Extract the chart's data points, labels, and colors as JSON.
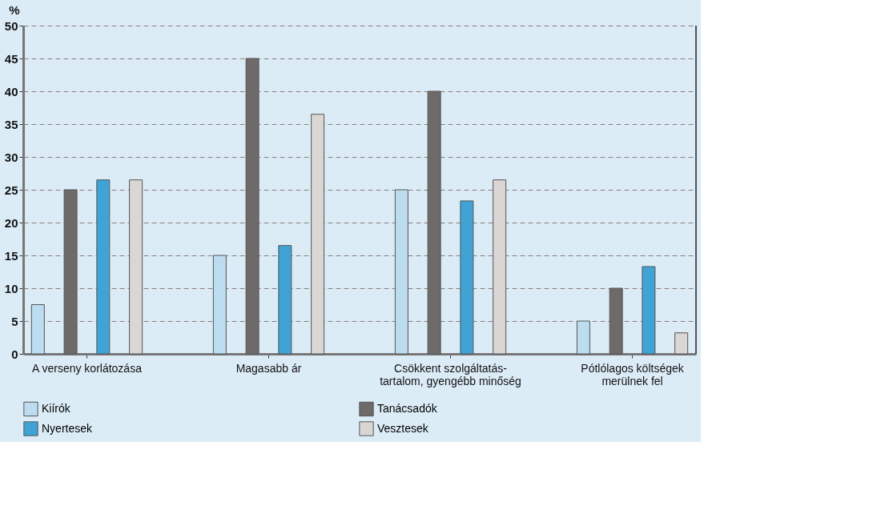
{
  "chart_data": {
    "type": "bar",
    "ylabel": "%",
    "categories": [
      "A verseny korlátozása",
      "Magasabb ár",
      "Csökkent szolgáltatás-\ntartalom, gyengébb minőség",
      "Pótlólagos költségek\nmerülnek fel"
    ],
    "series": [
      {
        "name": "Kiírók",
        "color": "#bcdcf0",
        "values": [
          7.5,
          15,
          25,
          5
        ]
      },
      {
        "name": "Tanácsadók",
        "color": "#6e6a6a",
        "values": [
          25,
          45,
          40,
          10
        ]
      },
      {
        "name": "Nyertesek",
        "color": "#3fa3d6",
        "values": [
          26.5,
          16.5,
          23.3,
          13.3
        ]
      },
      {
        "name": "Vesztesek",
        "color": "#d9d6d4",
        "values": [
          26.5,
          36.5,
          26.5,
          3.2
        ]
      }
    ],
    "ylim": [
      0,
      50
    ],
    "yticks": [
      0,
      5,
      10,
      15,
      20,
      25,
      30,
      35,
      40,
      45,
      50
    ],
    "grid": "y",
    "legend": "bottom"
  }
}
